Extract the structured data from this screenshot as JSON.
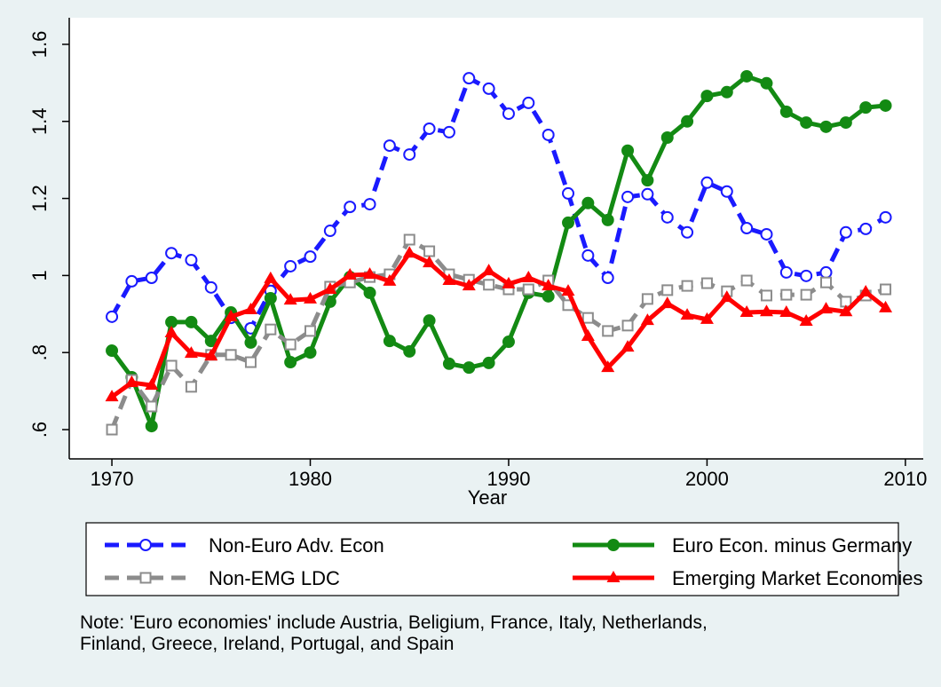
{
  "chart_data": {
    "type": "line",
    "x_label": "Year",
    "x": [
      1970,
      1971,
      1972,
      1973,
      1974,
      1975,
      1976,
      1977,
      1978,
      1979,
      1980,
      1981,
      1982,
      1983,
      1984,
      1985,
      1986,
      1987,
      1988,
      1989,
      1990,
      1991,
      1992,
      1993,
      1994,
      1995,
      1996,
      1997,
      1998,
      1999,
      2000,
      2001,
      2002,
      2003,
      2004,
      2005,
      2006,
      2007,
      2008,
      2009
    ],
    "xlim": [
      1967.85,
      2010.9
    ],
    "xticks": [
      1970,
      1980,
      1990,
      2000,
      2010
    ],
    "ylim": [
      0.524,
      1.669
    ],
    "yticks": [
      {
        "value": 0.6,
        "label": ".6"
      },
      {
        "value": 0.8,
        "label": ".8"
      },
      1,
      1.2,
      1.4,
      1.6
    ],
    "grid": false,
    "series": [
      {
        "name": "Non-Euro Adv. Econ",
        "color": "#1a1aff",
        "dash": true,
        "marker": "circle-open",
        "values": [
          0.893,
          0.985,
          0.994,
          1.058,
          1.04,
          0.969,
          0.89,
          0.863,
          0.96,
          1.024,
          1.049,
          1.116,
          1.178,
          1.185,
          1.337,
          1.314,
          1.381,
          1.372,
          1.512,
          1.485,
          1.42,
          1.448,
          1.365,
          1.213,
          1.052,
          0.994,
          1.204,
          1.211,
          1.151,
          1.112,
          1.241,
          1.218,
          1.123,
          1.107,
          1.008,
          0.999,
          1.008,
          1.112,
          1.121,
          1.151
        ]
      },
      {
        "name": "Euro Econ. minus Germany",
        "color": "#138a13",
        "dash": false,
        "marker": "circle",
        "values": [
          0.805,
          0.736,
          0.609,
          0.879,
          0.879,
          0.83,
          0.904,
          0.826,
          0.941,
          0.775,
          0.8,
          0.932,
          0.996,
          0.955,
          0.83,
          0.803,
          0.883,
          0.771,
          0.761,
          0.773,
          0.828,
          0.955,
          0.946,
          1.137,
          1.188,
          1.144,
          1.324,
          1.247,
          1.358,
          1.4,
          1.466,
          1.476,
          1.517,
          1.499,
          1.425,
          1.397,
          1.386,
          1.397,
          1.436,
          1.441
        ]
      },
      {
        "name": "Non-EMG LDC",
        "color": "#8c8c8c",
        "dash": true,
        "marker": "square-open",
        "values": [
          0.6,
          0.729,
          0.66,
          0.766,
          0.711,
          0.794,
          0.794,
          0.775,
          0.86,
          0.821,
          0.856,
          0.971,
          0.982,
          0.996,
          1.003,
          1.093,
          1.063,
          1.003,
          0.989,
          0.976,
          0.964,
          0.964,
          0.987,
          0.923,
          0.89,
          0.856,
          0.87,
          0.939,
          0.962,
          0.973,
          0.98,
          0.959,
          0.987,
          0.948,
          0.95,
          0.95,
          0.982,
          0.932,
          0.948,
          0.964
        ]
      },
      {
        "name": "Emerging Market Economies",
        "color": "#ff0000",
        "dash": false,
        "marker": "triangle",
        "values": [
          0.685,
          0.722,
          0.715,
          0.851,
          0.798,
          0.791,
          0.893,
          0.911,
          0.992,
          0.936,
          0.939,
          0.964,
          1.001,
          1.003,
          0.985,
          1.058,
          1.033,
          0.987,
          0.973,
          1.012,
          0.978,
          0.994,
          0.973,
          0.959,
          0.842,
          0.761,
          0.814,
          0.883,
          0.927,
          0.897,
          0.886,
          0.943,
          0.904,
          0.906,
          0.904,
          0.881,
          0.913,
          0.906,
          0.957,
          0.916
        ]
      }
    ],
    "note": [
      "Note: 'Euro economies' include Austria, Beligium, France, Italy, Netherlands,",
      "Finland, Greece, Ireland, Portugal, and Spain"
    ]
  }
}
